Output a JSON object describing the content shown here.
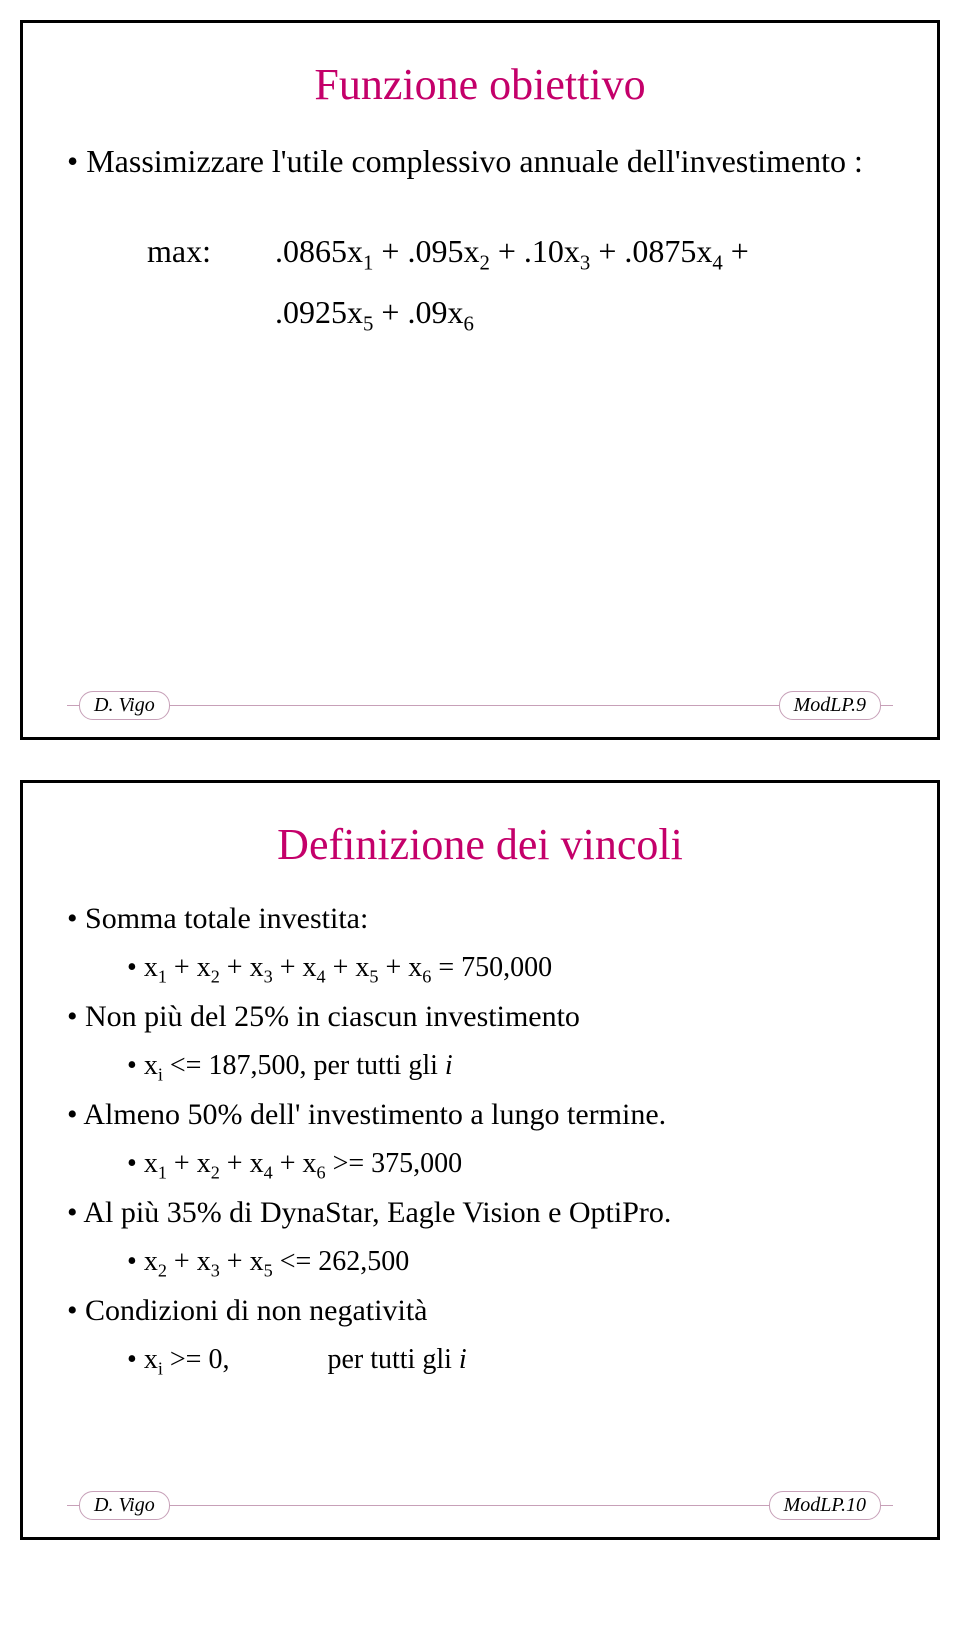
{
  "colors": {
    "title": "#c4006a",
    "body": "#000000",
    "footer_border": "#c7a0b8"
  },
  "slide1": {
    "title": "Funzione obiettivo",
    "bullet": "Massimizzare l'utile complessivo annuale dell'investimento :",
    "obj_label": "max:",
    "obj_line1": ".0865x<sub>1</sub> + .095x<sub>2</sub> + .10x<sub>3</sub> + .0875x<sub>4</sub> +",
    "obj_line2": ".0925x<sub>5</sub> + .09x<sub>6</sub>",
    "footer_left": "D. Vigo",
    "footer_right": "ModLP.9"
  },
  "slide2": {
    "title": "Definizione dei vincoli",
    "b1": "Somma totale investita:",
    "b1a": "x<sub>1</sub> + x<sub>2</sub> + x<sub>3</sub> + x<sub>4</sub> + x<sub>5</sub> + x<sub>6</sub>  =  750,000",
    "b2": "Non  più del 25%  in ciascun investimento",
    "b2a": "x<sub>i</sub> <= 187,500,   per tutti gli <i>i</i>",
    "b3": "Almeno 50% dell' investimento a lungo termine.",
    "b3a": "x<sub>1</sub> + x<sub>2</sub> + x<sub>4</sub> + x<sub>6</sub> >= 375,000",
    "b4": "Al più 35% di DynaStar, Eagle Vision e OptiPro.",
    "b4a": "x<sub>2</sub> + x<sub>3</sub> + x<sub>5</sub>  <= 262,500",
    "b5": "Condizioni di non negatività",
    "b5a": "x<sub>i</sub> >= 0, &nbsp;&nbsp;&nbsp;&nbsp;&nbsp;&nbsp;&nbsp;&nbsp;&nbsp;&nbsp;&nbsp;&nbsp; per tutti gli  <i>i</i>",
    "footer_left": "D. Vigo",
    "footer_right": "ModLP.10"
  }
}
